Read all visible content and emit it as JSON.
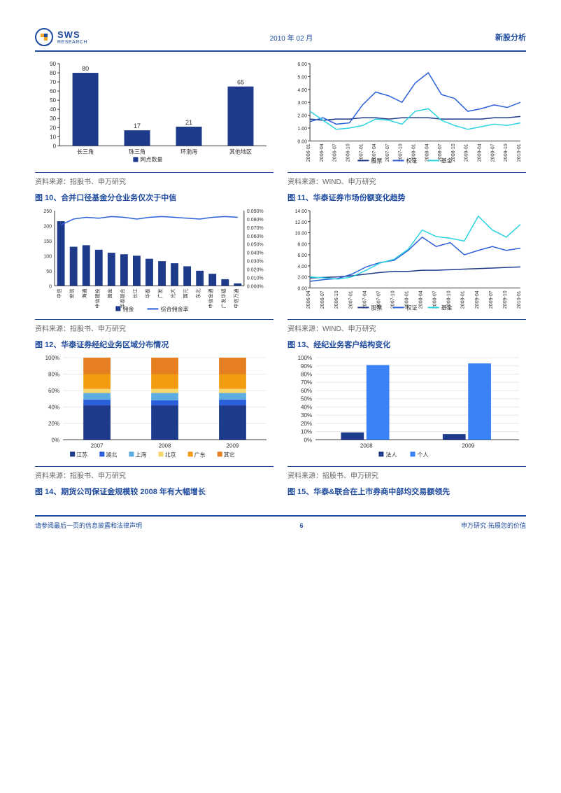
{
  "header": {
    "date": "2010 年 02 月",
    "doc_type": "新股分析",
    "logo_main": "SWS",
    "logo_sub": "RESEARCH"
  },
  "footer": {
    "left": "请参阅最后一页的信息披露和法律声明",
    "page": "6",
    "right": "申万研究·拓展您的价值"
  },
  "chart_bar1": {
    "type": "bar",
    "ylim": [
      0,
      90
    ],
    "yticks": [
      0,
      10,
      20,
      30,
      40,
      50,
      60,
      70,
      80,
      90
    ],
    "categories": [
      "长三角",
      "珠三角",
      "环渤海",
      "其他地区"
    ],
    "values": [
      80,
      17,
      21,
      65
    ],
    "bar_color": "#1e3a8a",
    "legend": [
      "网点数量"
    ]
  },
  "chart_line1": {
    "type": "line",
    "ylim": [
      0,
      6
    ],
    "yticks": [
      "0.00",
      "1.00",
      "2.00",
      "3.00",
      "4.00",
      "5.00",
      "6.00"
    ],
    "xlabels": [
      "2006-01",
      "2006-04",
      "2006-07",
      "2006-10",
      "2007-01",
      "2007-04",
      "2007-07",
      "2007-10",
      "2008-01",
      "2008-04",
      "2008-07",
      "2008-10",
      "2009-01",
      "2009-04",
      "2009-07",
      "2009-10",
      "2010-01"
    ],
    "series": [
      {
        "name": "股票",
        "color": "#1e3a8a",
        "width": 1.5,
        "data": [
          1.7,
          1.6,
          1.7,
          1.7,
          1.8,
          1.8,
          1.7,
          1.8,
          1.8,
          1.8,
          1.7,
          1.7,
          1.7,
          1.7,
          1.8,
          1.8,
          1.9
        ]
      },
      {
        "name": "权证",
        "color": "#2b5fd9",
        "width": 1.5,
        "data": [
          1.5,
          1.8,
          1.3,
          1.4,
          2.8,
          3.8,
          3.5,
          3.0,
          4.5,
          5.3,
          3.6,
          3.3,
          2.3,
          2.5,
          2.8,
          2.6,
          3.0
        ]
      },
      {
        "name": "基金",
        "color": "#2dd4e0",
        "width": 1.5,
        "data": [
          2.3,
          1.6,
          0.9,
          1.0,
          1.2,
          1.7,
          1.6,
          1.3,
          2.3,
          2.5,
          1.6,
          1.2,
          0.9,
          1.1,
          1.3,
          1.2,
          1.4
        ]
      }
    ]
  },
  "caption_a": "资料来源：招股书、申万研究",
  "caption_b": "资料来源：WIND、申万研究",
  "fig10_title": "图 10、合并口径基金分仓业务仅次于中信",
  "fig11_title": "图 11、华泰证券市场份额变化趋势",
  "fig12_title": "图 12、华泰证券经纪业务区域分布情况",
  "fig13_title": "图 13、经纪业务客户结构变化",
  "fig14_title": "图 14、期货公司保证金规模较 2008 年有大幅增长",
  "fig15_title": "图 15、华泰&联合在上市券商中部均交易额领先",
  "chart_combo": {
    "type": "bar-line",
    "ylim_l": [
      0,
      250
    ],
    "yticks_l": [
      0,
      50,
      100,
      150,
      200,
      250
    ],
    "ylim_r": [
      0,
      0.09
    ],
    "yticks_r": [
      "0.000%",
      "0.010%",
      "0.020%",
      "0.030%",
      "0.040%",
      "0.050%",
      "0.060%",
      "0.070%",
      "0.080%",
      "0.090%"
    ],
    "categories": [
      "中信",
      "安信",
      "海通",
      "中信建投",
      "国金",
      "华泰联合",
      "长江",
      "华泰",
      "广发",
      "光大",
      "国元",
      "东北",
      "中信金通",
      "广发华福",
      "中信万通"
    ],
    "bars": [
      215,
      130,
      135,
      120,
      110,
      105,
      100,
      90,
      82,
      75,
      65,
      50,
      40,
      22,
      8
    ],
    "bar_color": "#1e3a8a",
    "line": [
      0.073,
      0.08,
      0.082,
      0.081,
      0.083,
      0.082,
      0.08,
      0.082,
      0.083,
      0.082,
      0.081,
      0.08,
      0.082,
      0.083,
      0.082
    ],
    "line_color": "#2b5fd9",
    "legend": [
      "佣金",
      "综合佣金率"
    ]
  },
  "chart_line2": {
    "type": "line",
    "ylim": [
      0,
      14
    ],
    "yticks": [
      "0.00",
      "2.00",
      "4.00",
      "6.00",
      "8.00",
      "10.00",
      "12.00",
      "14.00"
    ],
    "xlabels": [
      "2006-04",
      "2006-07",
      "2006-10",
      "2007-01",
      "2007-04",
      "2007-07",
      "2007-10",
      "2008-01",
      "2008-04",
      "2008-07",
      "2008-10",
      "2009-01",
      "2009-04",
      "2009-07",
      "2009-10",
      "2010-01"
    ],
    "series": [
      {
        "name": "股票",
        "color": "#1e3a8a",
        "width": 1.5,
        "data": [
          1.8,
          1.9,
          2.0,
          2.2,
          2.5,
          2.8,
          3.0,
          3.0,
          3.2,
          3.2,
          3.3,
          3.4,
          3.5,
          3.6,
          3.7,
          3.8
        ]
      },
      {
        "name": "权证",
        "color": "#2b5fd9",
        "width": 1.5,
        "data": [
          1.2,
          1.5,
          1.7,
          2.5,
          3.8,
          4.6,
          5.0,
          6.8,
          9.2,
          7.5,
          8.2,
          6.0,
          6.8,
          7.5,
          6.8,
          7.2
        ]
      },
      {
        "name": "基金",
        "color": "#2dd4e0",
        "width": 1.5,
        "data": [
          2.0,
          1.8,
          1.6,
          2.0,
          3.2,
          4.5,
          5.2,
          7.0,
          10.5,
          9.3,
          9.0,
          8.5,
          13.0,
          10.5,
          9.2,
          11.5
        ]
      }
    ]
  },
  "chart_stack": {
    "type": "stacked-bar",
    "ylim": [
      0,
      100
    ],
    "yticks": [
      "0%",
      "20%",
      "40%",
      "60%",
      "80%",
      "100%"
    ],
    "categories": [
      "2007",
      "2008",
      "2009"
    ],
    "series": [
      {
        "name": "江苏",
        "color": "#1e3a8a",
        "data": [
          42,
          42,
          42
        ]
      },
      {
        "name": "湖北",
        "color": "#2b5fd9",
        "data": [
          7,
          6,
          7
        ]
      },
      {
        "name": "上海",
        "color": "#5dade2",
        "data": [
          8,
          9,
          8
        ]
      },
      {
        "name": "北京",
        "color": "#f5d76e",
        "data": [
          5,
          5,
          5
        ]
      },
      {
        "name": "广东",
        "color": "#f39c12",
        "data": [
          18,
          18,
          18
        ]
      },
      {
        "name": "其它",
        "color": "#e67e22",
        "data": [
          20,
          20,
          20
        ]
      }
    ]
  },
  "chart_group": {
    "type": "grouped-bar",
    "ylim": [
      0,
      100
    ],
    "yticks": [
      "0%",
      "10%",
      "20%",
      "30%",
      "40%",
      "50%",
      "60%",
      "70%",
      "80%",
      "90%",
      "100%"
    ],
    "categories": [
      "2008",
      "2009"
    ],
    "series": [
      {
        "name": "法人",
        "color": "#1e3a8a",
        "data": [
          9,
          7
        ]
      },
      {
        "name": "个人",
        "color": "#3b82f6",
        "data": [
          91,
          93
        ]
      }
    ]
  },
  "styling": {
    "axis_color": "#333",
    "grid_color": "#ddd",
    "bg": "#ffffff"
  }
}
